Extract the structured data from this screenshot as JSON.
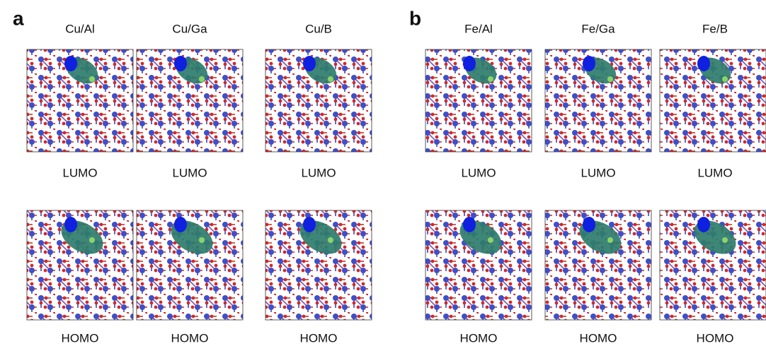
{
  "panels": [
    {
      "label": "a",
      "columns": [
        {
          "title": "Cu/Al",
          "cells": [
            {
              "label": "LUMO"
            },
            {
              "label": "HOMO"
            }
          ]
        },
        {
          "title": "Cu/Ga",
          "cells": [
            {
              "label": "LUMO"
            },
            {
              "label": "HOMO"
            }
          ]
        },
        {
          "title": "Cu/B",
          "cells": [
            {
              "label": "LUMO"
            },
            {
              "label": "HOMO"
            }
          ]
        }
      ]
    },
    {
      "label": "b",
      "columns": [
        {
          "title": "Fe/Al",
          "cells": [
            {
              "label": "LUMO"
            },
            {
              "label": "HOMO"
            }
          ]
        },
        {
          "title": "Fe/Ga",
          "cells": [
            {
              "label": "LUMO"
            },
            {
              "label": "HOMO"
            }
          ]
        },
        {
          "title": "Fe/B",
          "cells": [
            {
              "label": "LUMO"
            },
            {
              "label": "HOMO"
            }
          ]
        }
      ]
    }
  ]
}
